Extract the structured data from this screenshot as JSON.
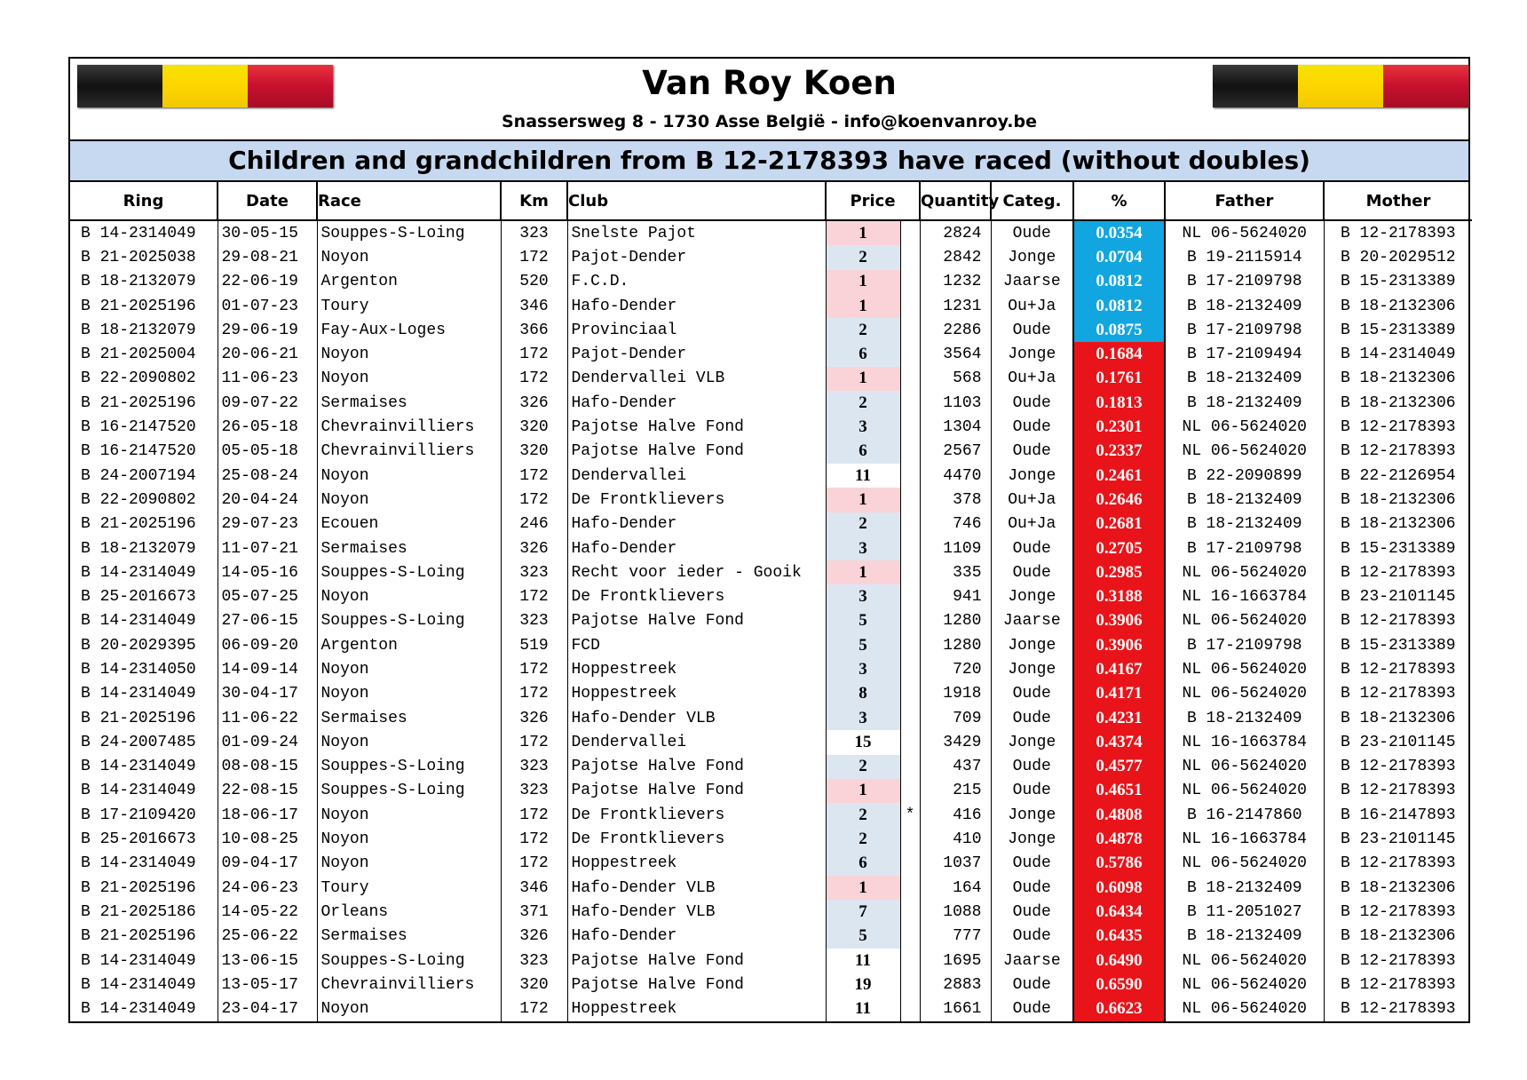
{
  "header": {
    "title": "Van Roy Koen",
    "address": "Snassersweg 8 - 1730 Asse België - info@koenvanroy.be",
    "subtitle": "Children and grandchildren from B 12-2178393 have raced (without doubles)"
  },
  "table": {
    "columns": [
      "Ring",
      "Date",
      "Race",
      "Km",
      "Club",
      "Price",
      "Quantity",
      "Categ.",
      "%",
      "Father",
      "Mother"
    ],
    "rows": [
      {
        "ring": "B 14-2314049",
        "date": "30-05-15",
        "race": "Souppes-S-Loing",
        "km": "323",
        "club": "Snelste Pajot",
        "price": "1",
        "quantity": "2824",
        "categ": "Oude",
        "percent": "0.0354",
        "father": "NL 06-5624020",
        "mother": "B 12-2178393"
      },
      {
        "ring": "B 21-2025038",
        "date": "29-08-21",
        "race": "Noyon",
        "km": "172",
        "club": "Pajot-Dender",
        "price": "2",
        "quantity": "2842",
        "categ": "Jonge",
        "percent": "0.0704",
        "father": "B 19-2115914",
        "mother": "B 20-2029512"
      },
      {
        "ring": "B 18-2132079",
        "date": "22-06-19",
        "race": "Argenton",
        "km": "520",
        "club": "F.C.D.",
        "price": "1",
        "quantity": "1232",
        "categ": "Jaarse",
        "percent": "0.0812",
        "father": "B 17-2109798",
        "mother": "B 15-2313389"
      },
      {
        "ring": "B 21-2025196",
        "date": "01-07-23",
        "race": "Toury",
        "km": "346",
        "club": "Hafo-Dender",
        "price": "1",
        "quantity": "1231",
        "categ": "Ou+Ja",
        "percent": "0.0812",
        "father": "B 18-2132409",
        "mother": "B 18-2132306"
      },
      {
        "ring": "B 18-2132079",
        "date": "29-06-19",
        "race": "Fay-Aux-Loges",
        "km": "366",
        "club": "Provinciaal",
        "price": "2",
        "quantity": "2286",
        "categ": "Oude",
        "percent": "0.0875",
        "father": "B 17-2109798",
        "mother": "B 15-2313389"
      },
      {
        "ring": "B 21-2025004",
        "date": "20-06-21",
        "race": "Noyon",
        "km": "172",
        "club": "Pajot-Dender",
        "price": "6",
        "quantity": "3564",
        "categ": "Jonge",
        "percent": "0.1684",
        "father": "B 17-2109494",
        "mother": "B 14-2314049"
      },
      {
        "ring": "B 22-2090802",
        "date": "11-06-23",
        "race": "Noyon",
        "km": "172",
        "club": "Dendervallei VLB",
        "price": "1",
        "quantity": "568",
        "categ": "Ou+Ja",
        "percent": "0.1761",
        "father": "B 18-2132409",
        "mother": "B 18-2132306"
      },
      {
        "ring": "B 21-2025196",
        "date": "09-07-22",
        "race": "Sermaises",
        "km": "326",
        "club": "Hafo-Dender",
        "price": "2",
        "quantity": "1103",
        "categ": "Oude",
        "percent": "0.1813",
        "father": "B 18-2132409",
        "mother": "B 18-2132306"
      },
      {
        "ring": "B 16-2147520",
        "date": "26-05-18",
        "race": "Chevrainvilliers",
        "km": "320",
        "club": "Pajotse Halve Fond",
        "price": "3",
        "quantity": "1304",
        "categ": "Oude",
        "percent": "0.2301",
        "father": "NL 06-5624020",
        "mother": "B 12-2178393"
      },
      {
        "ring": "B 16-2147520",
        "date": "05-05-18",
        "race": "Chevrainvilliers",
        "km": "320",
        "club": "Pajotse Halve Fond",
        "price": "6",
        "quantity": "2567",
        "categ": "Oude",
        "percent": "0.2337",
        "father": "NL 06-5624020",
        "mother": "B 12-2178393"
      },
      {
        "ring": "B 24-2007194",
        "date": "25-08-24",
        "race": "Noyon",
        "km": "172",
        "club": "Dendervallei",
        "price": "11",
        "quantity": "4470",
        "categ": "Jonge",
        "percent": "0.2461",
        "father": "B 22-2090899",
        "mother": "B 22-2126954"
      },
      {
        "ring": "B 22-2090802",
        "date": "20-04-24",
        "race": "Noyon",
        "km": "172",
        "club": "De Frontklievers",
        "price": "1",
        "quantity": "378",
        "categ": "Ou+Ja",
        "percent": "0.2646",
        "father": "B 18-2132409",
        "mother": "B 18-2132306"
      },
      {
        "ring": "B 21-2025196",
        "date": "29-07-23",
        "race": "Ecouen",
        "km": "246",
        "club": "Hafo-Dender",
        "price": "2",
        "quantity": "746",
        "categ": "Ou+Ja",
        "percent": "0.2681",
        "father": "B 18-2132409",
        "mother": "B 18-2132306"
      },
      {
        "ring": "B 18-2132079",
        "date": "11-07-21",
        "race": "Sermaises",
        "km": "326",
        "club": "Hafo-Dender",
        "price": "3",
        "quantity": "1109",
        "categ": "Oude",
        "percent": "0.2705",
        "father": "B 17-2109798",
        "mother": "B 15-2313389"
      },
      {
        "ring": "B 14-2314049",
        "date": "14-05-16",
        "race": "Souppes-S-Loing",
        "km": "323",
        "club": "Recht voor ieder - Gooik",
        "price": "1",
        "quantity": "335",
        "categ": "Oude",
        "percent": "0.2985",
        "father": "NL 06-5624020",
        "mother": "B 12-2178393"
      },
      {
        "ring": "B 25-2016673",
        "date": "05-07-25",
        "race": "Noyon",
        "km": "172",
        "club": "De Frontklievers",
        "price": "3",
        "quantity": "941",
        "categ": "Jonge",
        "percent": "0.3188",
        "father": "NL 16-1663784",
        "mother": "B 23-2101145"
      },
      {
        "ring": "B 14-2314049",
        "date": "27-06-15",
        "race": "Souppes-S-Loing",
        "km": "323",
        "club": "Pajotse Halve Fond",
        "price": "5",
        "quantity": "1280",
        "categ": "Jaarse",
        "percent": "0.3906",
        "father": "NL 06-5624020",
        "mother": "B 12-2178393"
      },
      {
        "ring": "B 20-2029395",
        "date": "06-09-20",
        "race": "Argenton",
        "km": "519",
        "club": "FCD",
        "price": "5",
        "quantity": "1280",
        "categ": "Jonge",
        "percent": "0.3906",
        "father": "B 17-2109798",
        "mother": "B 15-2313389"
      },
      {
        "ring": "B 14-2314050",
        "date": "14-09-14",
        "race": "Noyon",
        "km": "172",
        "club": "Hoppestreek",
        "price": "3",
        "quantity": "720",
        "categ": "Jonge",
        "percent": "0.4167",
        "father": "NL 06-5624020",
        "mother": "B 12-2178393"
      },
      {
        "ring": "B 14-2314049",
        "date": "30-04-17",
        "race": "Noyon",
        "km": "172",
        "club": "Hoppestreek",
        "price": "8",
        "quantity": "1918",
        "categ": "Oude",
        "percent": "0.4171",
        "father": "NL 06-5624020",
        "mother": "B 12-2178393"
      },
      {
        "ring": "B 21-2025196",
        "date": "11-06-22",
        "race": "Sermaises",
        "km": "326",
        "club": "Hafo-Dender VLB",
        "price": "3",
        "quantity": "709",
        "categ": "Oude",
        "percent": "0.4231",
        "father": "B 18-2132409",
        "mother": "B 18-2132306"
      },
      {
        "ring": "B 24-2007485",
        "date": "01-09-24",
        "race": "Noyon",
        "km": "172",
        "club": "Dendervallei",
        "price": "15",
        "quantity": "3429",
        "categ": "Jonge",
        "percent": "0.4374",
        "father": "NL 16-1663784",
        "mother": "B 23-2101145"
      },
      {
        "ring": "B 14-2314049",
        "date": "08-08-15",
        "race": "Souppes-S-Loing",
        "km": "323",
        "club": "Pajotse Halve Fond",
        "price": "2",
        "quantity": "437",
        "categ": "Oude",
        "percent": "0.4577",
        "father": "NL 06-5624020",
        "mother": "B 12-2178393"
      },
      {
        "ring": "B 14-2314049",
        "date": "22-08-15",
        "race": "Souppes-S-Loing",
        "km": "323",
        "club": "Pajotse Halve Fond",
        "price": "1",
        "quantity": "215",
        "categ": "Oude",
        "percent": "0.4651",
        "father": "NL 06-5624020",
        "mother": "B 12-2178393"
      },
      {
        "ring": "B 17-2109420",
        "date": "18-06-17",
        "race": "Noyon",
        "km": "172",
        "club": "De Frontklievers",
        "price": "2",
        "mark": "*",
        "quantity": "416",
        "categ": "Jonge",
        "percent": "0.4808",
        "father": "B 16-2147860",
        "mother": "B 16-2147893"
      },
      {
        "ring": "B 25-2016673",
        "date": "10-08-25",
        "race": "Noyon",
        "km": "172",
        "club": "De Frontklievers",
        "price": "2",
        "quantity": "410",
        "categ": "Jonge",
        "percent": "0.4878",
        "father": "NL 16-1663784",
        "mother": "B 23-2101145"
      },
      {
        "ring": "B 14-2314049",
        "date": "09-04-17",
        "race": "Noyon",
        "km": "172",
        "club": "Hoppestreek",
        "price": "6",
        "quantity": "1037",
        "categ": "Oude",
        "percent": "0.5786",
        "father": "NL 06-5624020",
        "mother": "B 12-2178393"
      },
      {
        "ring": "B 21-2025196",
        "date": "24-06-23",
        "race": "Toury",
        "km": "346",
        "club": "Hafo-Dender VLB",
        "price": "1",
        "quantity": "164",
        "categ": "Oude",
        "percent": "0.6098",
        "father": "B 18-2132409",
        "mother": "B 18-2132306"
      },
      {
        "ring": "B 21-2025186",
        "date": "14-05-22",
        "race": "Orleans",
        "km": "371",
        "club": "Hafo-Dender VLB",
        "price": "7",
        "quantity": "1088",
        "categ": "Oude",
        "percent": "0.6434",
        "father": "B 11-2051027",
        "mother": "B 12-2178393"
      },
      {
        "ring": "B 21-2025196",
        "date": "25-06-22",
        "race": "Sermaises",
        "km": "326",
        "club": "Hafo-Dender",
        "price": "5",
        "quantity": "777",
        "categ": "Oude",
        "percent": "0.6435",
        "father": "B 18-2132409",
        "mother": "B 18-2132306"
      },
      {
        "ring": "B 14-2314049",
        "date": "13-06-15",
        "race": "Souppes-S-Loing",
        "km": "323",
        "club": "Pajotse Halve Fond",
        "price": "11",
        "quantity": "1695",
        "categ": "Jaarse",
        "percent": "0.6490",
        "father": "NL 06-5624020",
        "mother": "B 12-2178393"
      },
      {
        "ring": "B 14-2314049",
        "date": "13-05-17",
        "race": "Chevrainvilliers",
        "km": "320",
        "club": "Pajotse Halve Fond",
        "price": "19",
        "quantity": "2883",
        "categ": "Oude",
        "percent": "0.6590",
        "father": "NL 06-5624020",
        "mother": "B 12-2178393"
      },
      {
        "ring": "B 14-2314049",
        "date": "23-04-17",
        "race": "Noyon",
        "km": "172",
        "club": "Hoppestreek",
        "price": "11",
        "quantity": "1661",
        "categ": "Oude",
        "percent": "0.6623",
        "father": "NL 06-5624020",
        "mother": "B 12-2178393"
      }
    ]
  }
}
